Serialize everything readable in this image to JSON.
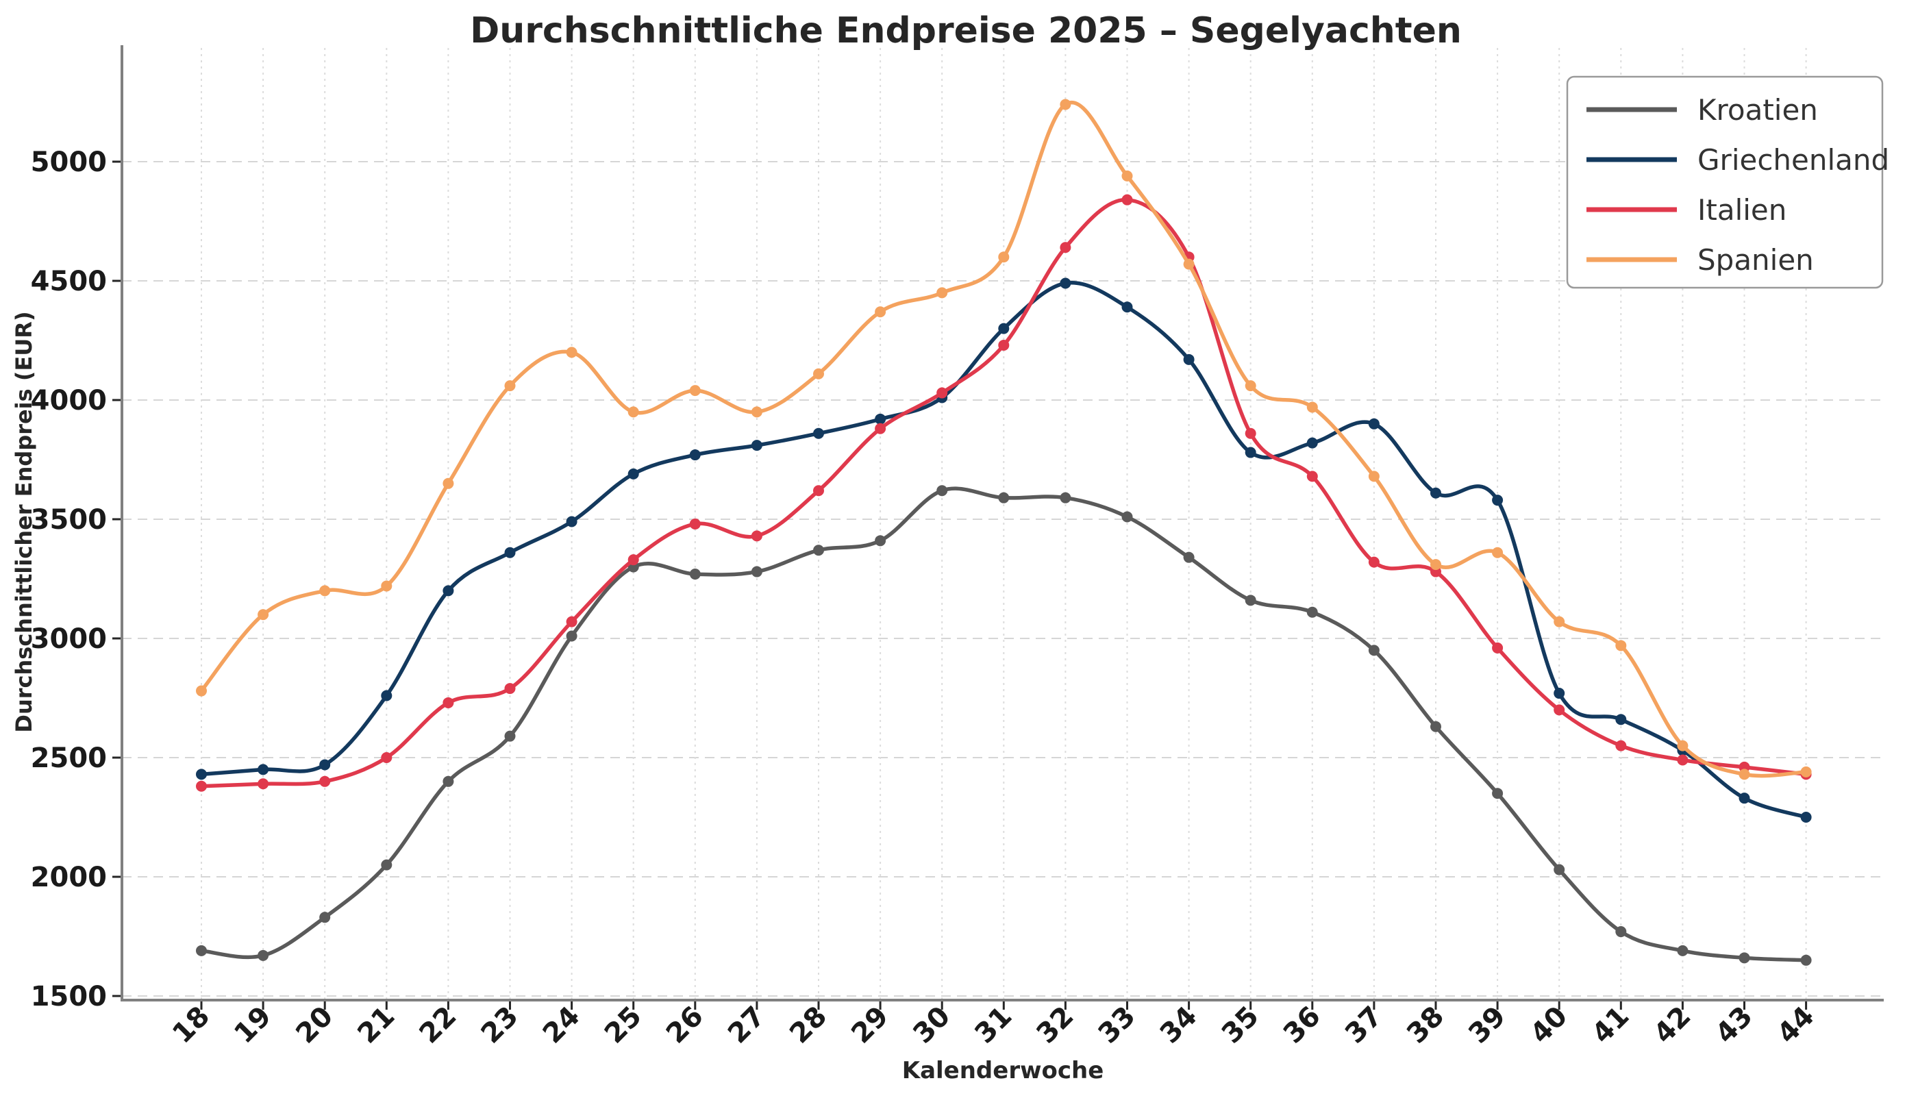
{
  "chart_data": {
    "type": "line",
    "title": "Durchschnittliche Endpreise 2025 – Segelyachten",
    "xlabel": "Kalenderwoche",
    "ylabel": "Durchschnittlicher Endpreis (EUR)",
    "x": [
      18,
      19,
      20,
      21,
      22,
      23,
      24,
      25,
      26,
      27,
      28,
      29,
      30,
      31,
      32,
      33,
      34,
      35,
      36,
      37,
      38,
      39,
      40,
      41,
      42,
      43,
      44
    ],
    "yticks": [
      1500,
      2000,
      2500,
      3000,
      3500,
      4000,
      4500,
      5000
    ],
    "ylim": [
      1483,
      5477
    ],
    "grid": true,
    "legend_position": "upper right",
    "marker": "circle",
    "line_style": "smooth",
    "series": [
      {
        "name": "Kroatien",
        "color": "#5a5a5a",
        "values": [
          1690,
          1670,
          1830,
          2050,
          2400,
          2590,
          3010,
          3300,
          3270,
          3280,
          3370,
          3410,
          3620,
          3590,
          3590,
          3510,
          3340,
          3160,
          3110,
          2950,
          2630,
          2350,
          2030,
          1770,
          1690,
          1660,
          1650
        ]
      },
      {
        "name": "Griechenland",
        "color": "#13395e",
        "values": [
          2430,
          2450,
          2470,
          2760,
          3200,
          3360,
          3490,
          3690,
          3770,
          3810,
          3860,
          3920,
          4010,
          4300,
          4490,
          4390,
          4170,
          3780,
          3820,
          3900,
          3610,
          3580,
          2770,
          2660,
          2530,
          2330,
          2250
        ]
      },
      {
        "name": "Italien",
        "color": "#e0394c",
        "values": [
          2380,
          2390,
          2400,
          2500,
          2730,
          2790,
          3070,
          3330,
          3480,
          3430,
          3620,
          3880,
          4030,
          4230,
          4640,
          4840,
          4600,
          3860,
          3680,
          3320,
          3280,
          2960,
          2700,
          2550,
          2490,
          2460,
          2430
        ]
      },
      {
        "name": "Spanien",
        "color": "#f4a25e",
        "values": [
          2780,
          3100,
          3200,
          3220,
          3650,
          4060,
          4200,
          3950,
          4040,
          3950,
          4110,
          4370,
          4450,
          4600,
          5240,
          4940,
          4570,
          4060,
          3970,
          3680,
          3310,
          3360,
          3070,
          2970,
          2550,
          2430,
          2440
        ]
      }
    ]
  }
}
